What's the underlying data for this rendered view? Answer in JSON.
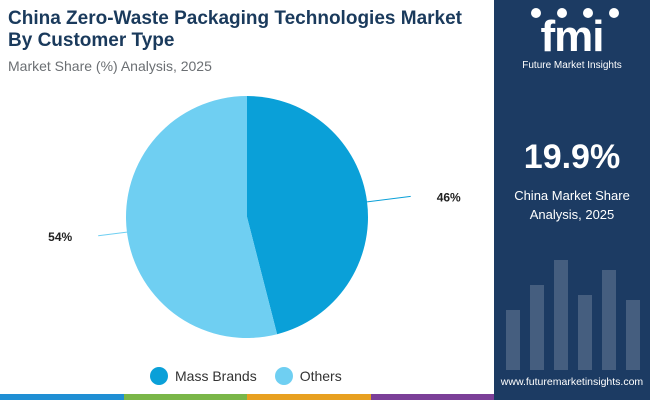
{
  "header": {
    "title": "China Zero-Waste Packaging Technologies Market By Customer Type",
    "subtitle": "Market Share (%) Analysis, 2025"
  },
  "chart_data": {
    "type": "pie",
    "title": "China Zero-Waste Packaging Technologies Market By Customer Type",
    "subtitle": "Market Share (%) Analysis, 2025",
    "categories": [
      "Mass Brands",
      "Others"
    ],
    "values": [
      46,
      54
    ],
    "data_labels": [
      "46%",
      "54%"
    ],
    "colors": [
      "#0aa0d8",
      "#6fcff2"
    ],
    "legend_position": "bottom"
  },
  "legend": {
    "items": [
      {
        "label": "Mass Brands",
        "color": "#0aa0d8"
      },
      {
        "label": "Others",
        "color": "#6fcff2"
      }
    ]
  },
  "side_panel": {
    "logo_text": "fmi",
    "logo_caption": "Future Market Insights",
    "stat_value": "19.9%",
    "stat_label_line1": "China Market Share",
    "stat_label_line2": "Analysis, 2025",
    "website": "www.futuremarketinsights.com",
    "background_color": "#1c3b63"
  },
  "bottom_bar_colors": [
    "#1f8fd4",
    "#7ab648",
    "#e8a020",
    "#7b3f98"
  ]
}
